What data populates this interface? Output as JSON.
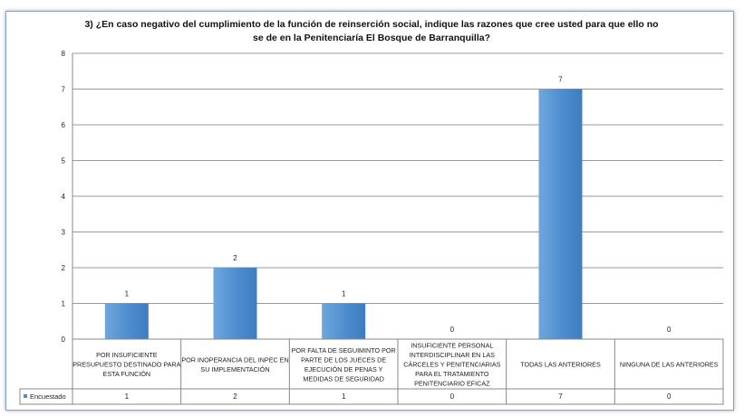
{
  "chart_data": {
    "type": "bar",
    "title": "3) ¿En caso  negativo del cumplimiento de la función de reinserción social, indique las  razones que cree usted para que ello no se de en la Penitenciaría El Bosque de Barranquilla?",
    "categories": [
      [
        "POR INSUFICIENTE",
        "PRESUPUESTO DESTINADO PARA",
        "ESTA FUNCIÓN"
      ],
      [
        "POR INOPERANCIA DEL INPEC EN",
        "SU IMPLEMENTACIÓN"
      ],
      [
        "POR FALTA DE SEGUIMINTO POR",
        "PARTE DE LOS JUECES DE",
        "EJECUCIÓN DE PENAS Y",
        "MEDIDAS DE SEGURIDAD"
      ],
      [
        "INSUFICIENTE PERSONAL",
        "INTERDISCIPLINAR EN LAS",
        "CÁRCELES Y PENITENCIARIAS",
        "PARA EL TRATAMIENTO",
        "PENITENCIARIO EFICAZ"
      ],
      [
        "TODAS LAS ANTERIORES"
      ],
      [
        "NINGUNA DE LAS ANTERIORES"
      ]
    ],
    "series": [
      {
        "name": "Encuestado",
        "values": [
          1,
          2,
          1,
          0,
          7,
          0
        ],
        "color": "#4f8fd0"
      }
    ],
    "ylim": [
      0,
      8
    ],
    "yticks": [
      0,
      1,
      2,
      3,
      4,
      5,
      6,
      7,
      8
    ],
    "grid": true,
    "legend": "data-table",
    "data_labels": true
  }
}
